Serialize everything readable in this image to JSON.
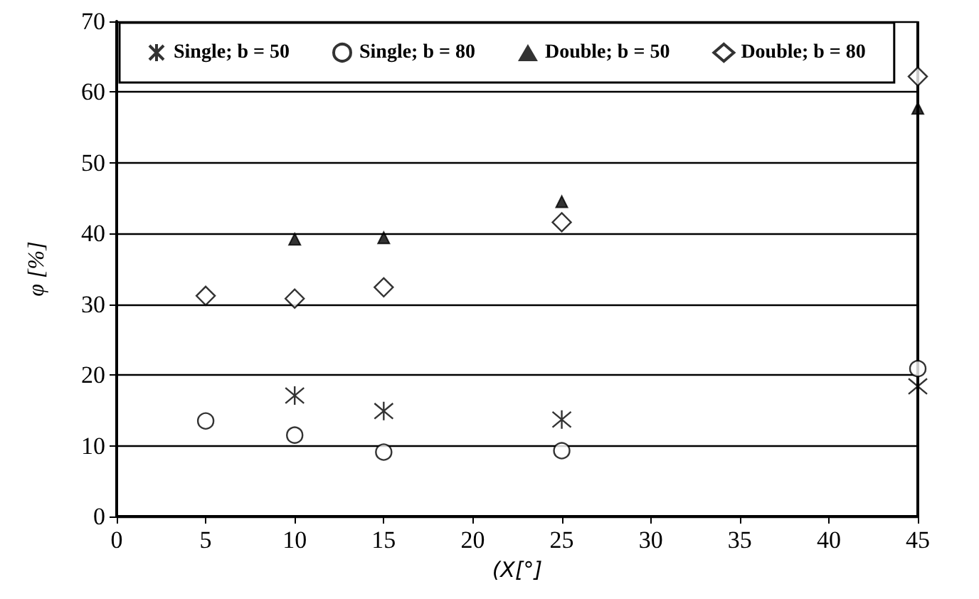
{
  "chart_data": {
    "type": "scatter",
    "xlabel": "(X[°]",
    "ylabel": "φ [%]",
    "xlim": [
      0,
      45
    ],
    "xticks": [
      0,
      5,
      10,
      15,
      20,
      25,
      30,
      35,
      40,
      45
    ],
    "ylim": [
      0,
      70
    ],
    "yticks": [
      0,
      10,
      20,
      30,
      40,
      50,
      60,
      70
    ],
    "grid": "y",
    "legend": "top",
    "series": [
      {
        "name": "Single; b = 50",
        "color": "#000000",
        "marker": "cross",
        "x": [
          10,
          15,
          25,
          45
        ],
        "values": [
          17.1,
          14.9,
          13.7,
          18.4
        ]
      },
      {
        "name": "Single; b = 80",
        "color": "#000000",
        "marker": "circle",
        "x": [
          5,
          10,
          15,
          25,
          45
        ],
        "values": [
          13.5,
          11.5,
          9.1,
          9.3,
          20.9
        ]
      },
      {
        "name": "Double; b = 50",
        "color": "#000000",
        "marker": "triangle",
        "x": [
          10,
          15,
          25,
          45
        ],
        "values": [
          39.2,
          39.4,
          44.5,
          57.7
        ]
      },
      {
        "name": "Double; b = 80",
        "color": "#000000",
        "marker": "diamond",
        "x": [
          5,
          10,
          15,
          25,
          45
        ],
        "values": [
          31.2,
          30.8,
          32.4,
          41.6,
          62.2
        ]
      }
    ]
  }
}
